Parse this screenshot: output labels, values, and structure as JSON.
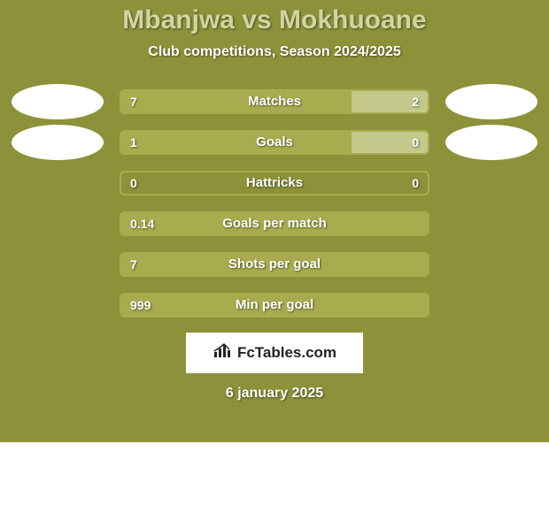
{
  "colors": {
    "background": "#8d923a",
    "title": "#d1d5a2",
    "subtitle": "#ffffff",
    "bar_border": "#a8ac4e",
    "bar_fill_bg": "#8d923a",
    "bar_left_fill": "#a8ac4e",
    "bar_right_fill": "#c3c98a",
    "bar_text": "#ffffff",
    "oval": "#ffffff",
    "fctables_bg": "#ffffff",
    "fctables_text": "#222222",
    "date": "#ffffff"
  },
  "title": "Mbanjwa vs Mokhuoane",
  "subtitle": "Club competitions, Season 2024/2025",
  "fctables": "FcTables.com",
  "date": "6 january 2025",
  "rows": [
    {
      "label": "Matches",
      "left_val": "7",
      "right_val": "2",
      "left_pct": 75,
      "right_pct": 25,
      "show_ovals": true
    },
    {
      "label": "Goals",
      "left_val": "1",
      "right_val": "0",
      "left_pct": 75,
      "right_pct": 25,
      "show_ovals": true
    },
    {
      "label": "Hattricks",
      "left_val": "0",
      "right_val": "0",
      "left_pct": 0,
      "right_pct": 0,
      "show_ovals": false
    },
    {
      "label": "Goals per match",
      "left_val": "0.14",
      "right_val": "",
      "left_pct": 100,
      "right_pct": 0,
      "show_ovals": false
    },
    {
      "label": "Shots per goal",
      "left_val": "7",
      "right_val": "",
      "left_pct": 100,
      "right_pct": 0,
      "show_ovals": false
    },
    {
      "label": "Min per goal",
      "left_val": "999",
      "right_val": "",
      "left_pct": 100,
      "right_pct": 0,
      "show_ovals": false
    }
  ]
}
